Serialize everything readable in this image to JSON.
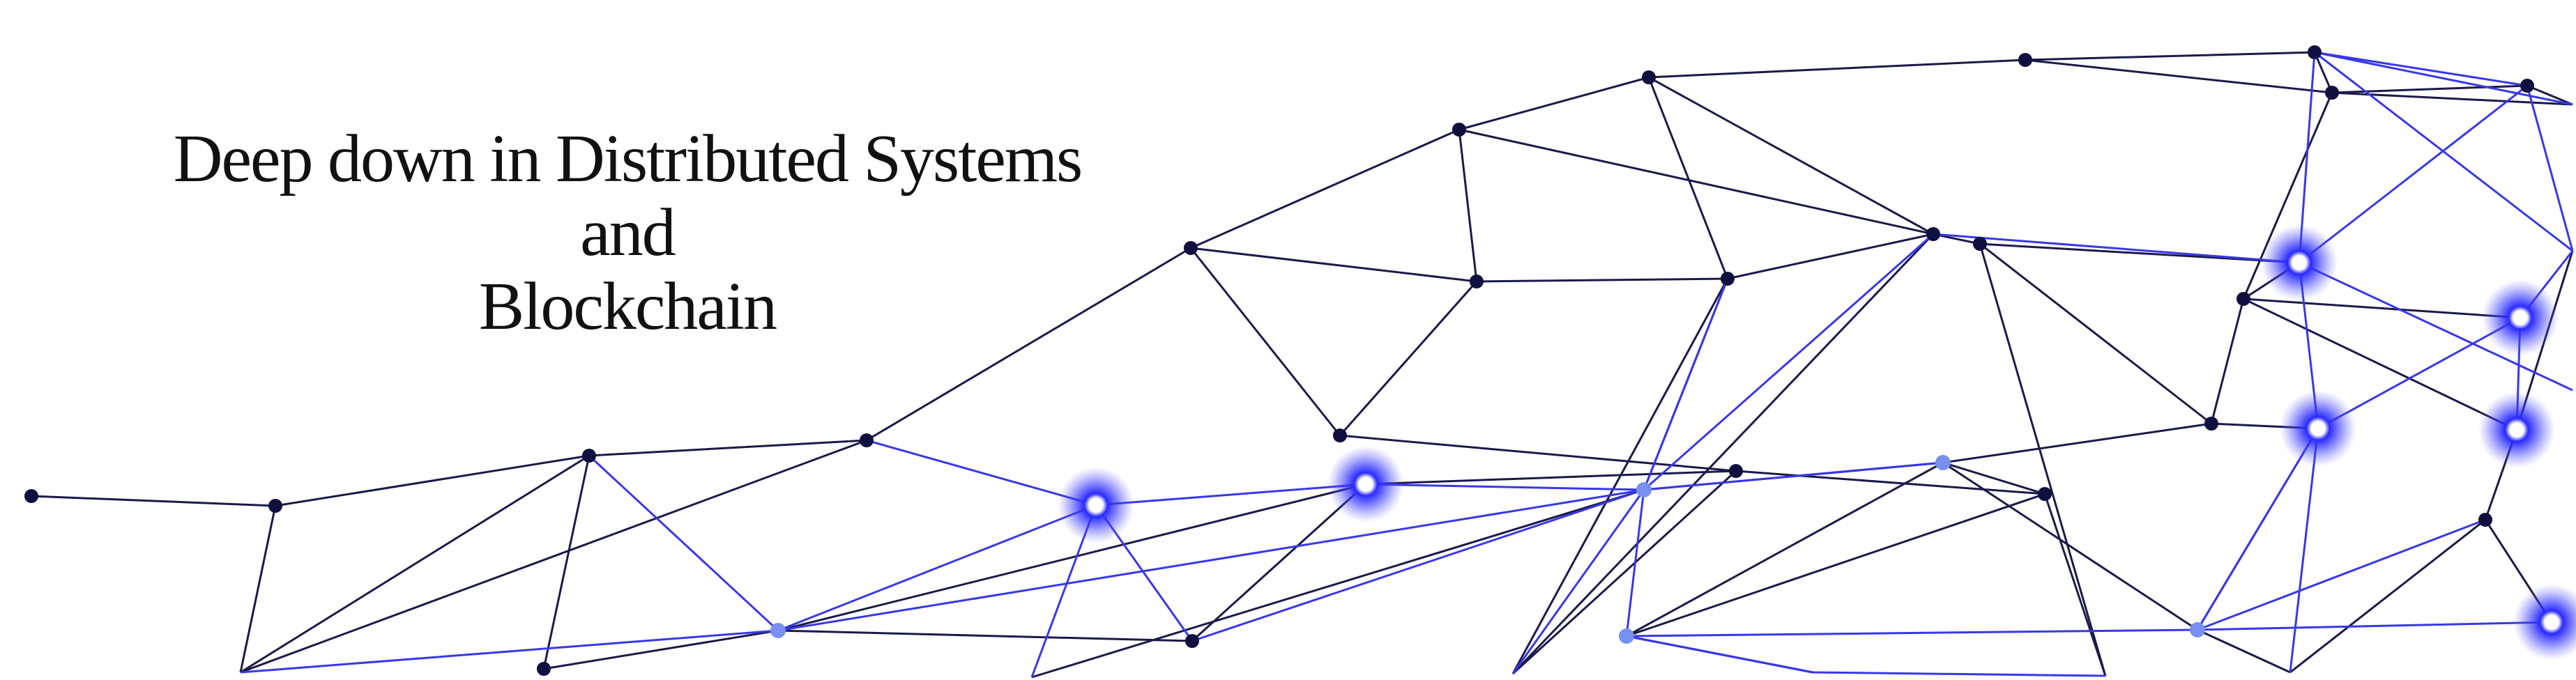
{
  "banner": {
    "title_line1": "Deep down in Distributed Systems",
    "title_line2": "and",
    "title_line3": "Blockchain"
  },
  "colors": {
    "background": "#ffffff",
    "dark_line": "#1a1a4a",
    "blue_line": "#3838e8",
    "dark_node": "#101040",
    "light_node": "#7890f0",
    "glow": "#2a2aff"
  }
}
